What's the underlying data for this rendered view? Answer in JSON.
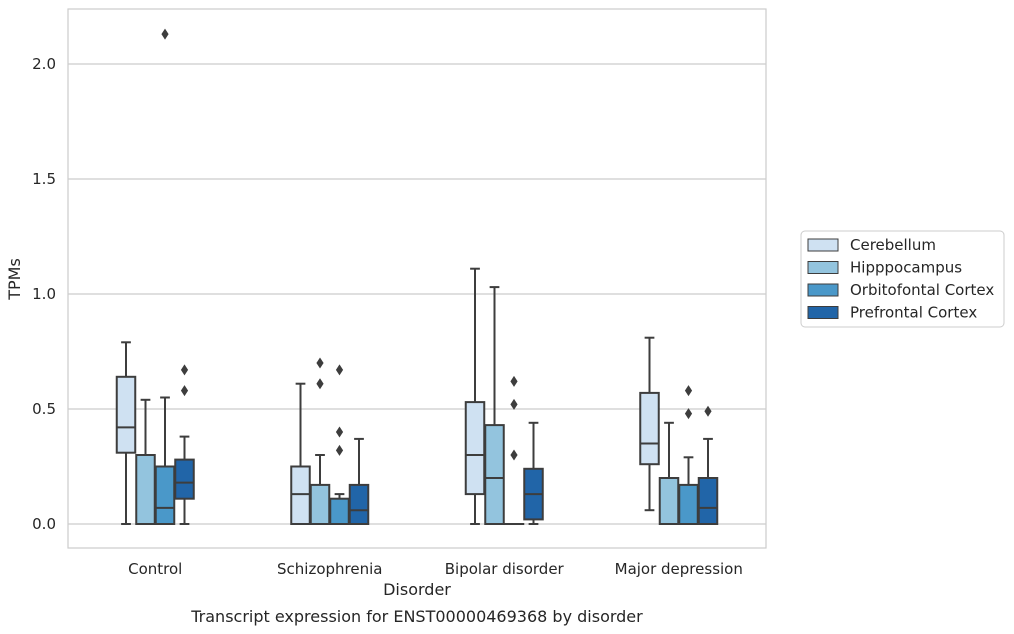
{
  "chart_data": {
    "type": "box",
    "caption": "Transcript expression for ENST00000469368 by disorder",
    "xlabel": "Disorder",
    "ylabel": "TPMs",
    "ylim": [
      -0.1,
      2.25
    ],
    "yticks": [
      "0.0",
      "0.5",
      "1.0",
      "1.5",
      "2.0"
    ],
    "ytick_values": [
      0.0,
      0.5,
      1.0,
      1.5,
      2.0
    ],
    "grid": "horizontal",
    "legend_position": "right",
    "categories": [
      "Control",
      "Schizophrenia",
      "Bipolar disorder",
      "Major depression"
    ],
    "series": [
      {
        "name": "Cerebellum",
        "color": "#cfe1f2",
        "boxes": [
          {
            "min": 0.0,
            "q1": 0.31,
            "median": 0.42,
            "q3": 0.64,
            "max": 0.79,
            "outliers": []
          },
          {
            "min": 0.0,
            "q1": 0.0,
            "median": 0.13,
            "q3": 0.25,
            "max": 0.61,
            "outliers": []
          },
          {
            "min": 0.0,
            "q1": 0.13,
            "median": 0.3,
            "q3": 0.53,
            "max": 1.11,
            "outliers": []
          },
          {
            "min": 0.06,
            "q1": 0.26,
            "median": 0.35,
            "q3": 0.57,
            "max": 0.81,
            "outliers": []
          }
        ]
      },
      {
        "name": "Hipppocampus",
        "color": "#93c4de",
        "boxes": [
          {
            "min": 0.0,
            "q1": 0.0,
            "median": 0.0,
            "q3": 0.3,
            "max": 0.54,
            "outliers": []
          },
          {
            "min": 0.0,
            "q1": 0.0,
            "median": 0.0,
            "q3": 0.17,
            "max": 0.3,
            "outliers": [
              0.7,
              0.61
            ]
          },
          {
            "min": 0.0,
            "q1": 0.0,
            "median": 0.2,
            "q3": 0.43,
            "max": 1.03,
            "outliers": []
          },
          {
            "min": 0.0,
            "q1": 0.0,
            "median": 0.0,
            "q3": 0.2,
            "max": 0.44,
            "outliers": []
          }
        ]
      },
      {
        "name": "Orbitofontal Cortex",
        "color": "#4a98c9",
        "boxes": [
          {
            "min": 0.0,
            "q1": 0.0,
            "median": 0.07,
            "q3": 0.25,
            "max": 0.55,
            "outliers": [
              2.13
            ]
          },
          {
            "min": 0.0,
            "q1": 0.0,
            "median": 0.0,
            "q3": 0.11,
            "max": 0.13,
            "outliers": [
              0.67,
              0.4,
              0.32
            ]
          },
          {
            "min": 0.0,
            "q1": 0.0,
            "median": 0.0,
            "q3": 0.0,
            "max": 0.0,
            "outliers": [
              0.62,
              0.52,
              0.3
            ]
          },
          {
            "min": 0.0,
            "q1": 0.0,
            "median": 0.0,
            "q3": 0.17,
            "max": 0.29,
            "outliers": [
              0.58,
              0.48
            ]
          }
        ]
      },
      {
        "name": "Prefrontal Cortex",
        "color": "#2165a8",
        "boxes": [
          {
            "min": 0.0,
            "q1": 0.11,
            "median": 0.18,
            "q3": 0.28,
            "max": 0.38,
            "outliers": [
              0.67,
              0.58
            ]
          },
          {
            "min": 0.0,
            "q1": 0.0,
            "median": 0.06,
            "q3": 0.17,
            "max": 0.37,
            "outliers": []
          },
          {
            "min": 0.0,
            "q1": 0.02,
            "median": 0.13,
            "q3": 0.24,
            "max": 0.44,
            "outliers": []
          },
          {
            "min": 0.0,
            "q1": 0.0,
            "median": 0.07,
            "q3": 0.2,
            "max": 0.37,
            "outliers": [
              0.49
            ]
          }
        ]
      }
    ]
  }
}
